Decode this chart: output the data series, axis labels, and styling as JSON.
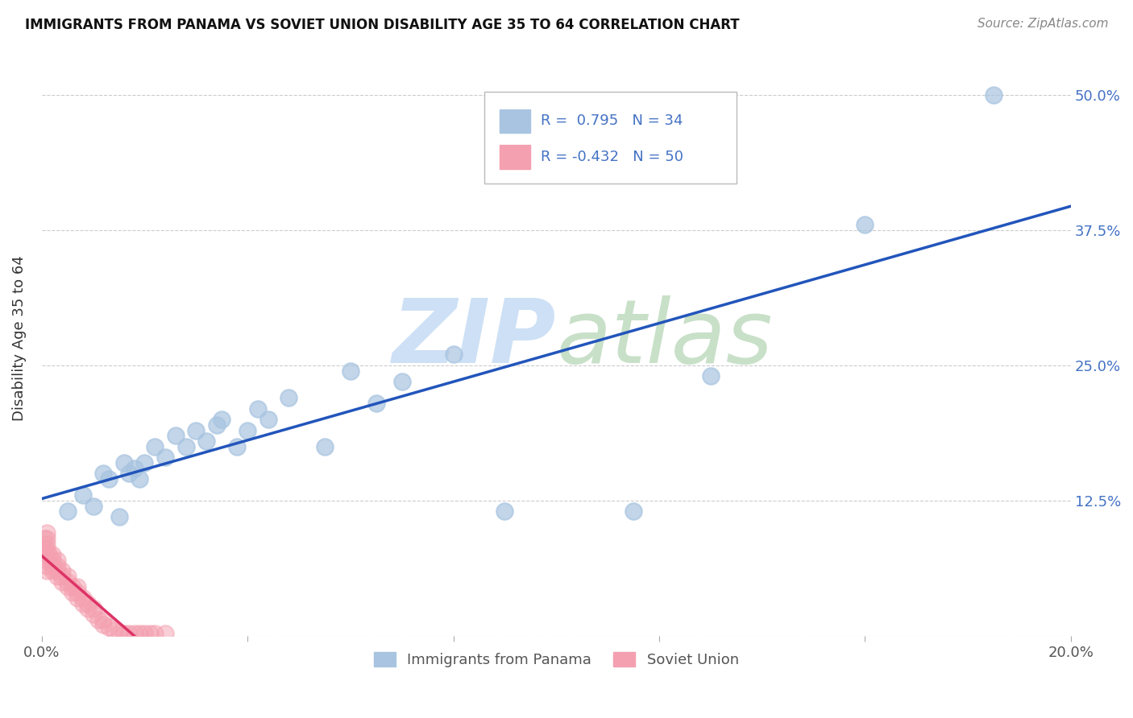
{
  "title": "IMMIGRANTS FROM PANAMA VS SOVIET UNION DISABILITY AGE 35 TO 64 CORRELATION CHART",
  "source": "Source: ZipAtlas.com",
  "ylabel": "Disability Age 35 to 64",
  "xlim": [
    0.0,
    0.2
  ],
  "ylim": [
    0.0,
    0.55
  ],
  "x_ticks": [
    0.0,
    0.04,
    0.08,
    0.12,
    0.16,
    0.2
  ],
  "x_tick_labels": [
    "0.0%",
    "",
    "",
    "",
    "",
    "20.0%"
  ],
  "y_ticks": [
    0.0,
    0.125,
    0.25,
    0.375,
    0.5
  ],
  "y_tick_labels_right": [
    "",
    "12.5%",
    "25.0%",
    "37.5%",
    "50.0%"
  ],
  "panama_R": 0.795,
  "panama_N": 34,
  "soviet_R": -0.432,
  "soviet_N": 50,
  "panama_color": "#a8c4e0",
  "soviet_color": "#f4a0b0",
  "trendline_panama_color": "#2255bb",
  "trendline_soviet_color": "#dd3366",
  "panama_scatter_alpha": 0.7,
  "soviet_scatter_alpha": 0.5,
  "panama_points_x": [
    0.005,
    0.008,
    0.01,
    0.012,
    0.013,
    0.015,
    0.016,
    0.017,
    0.018,
    0.019,
    0.02,
    0.022,
    0.024,
    0.026,
    0.028,
    0.03,
    0.032,
    0.034,
    0.035,
    0.038,
    0.04,
    0.042,
    0.044,
    0.048,
    0.055,
    0.06,
    0.065,
    0.07,
    0.08,
    0.09,
    0.115,
    0.13,
    0.16,
    0.185
  ],
  "panama_points_y": [
    0.115,
    0.13,
    0.12,
    0.15,
    0.145,
    0.11,
    0.16,
    0.15,
    0.155,
    0.145,
    0.16,
    0.175,
    0.165,
    0.185,
    0.175,
    0.19,
    0.18,
    0.195,
    0.2,
    0.175,
    0.19,
    0.21,
    0.2,
    0.22,
    0.175,
    0.245,
    0.215,
    0.235,
    0.26,
    0.115,
    0.115,
    0.24,
    0.38,
    0.5
  ],
  "soviet_points_x": [
    0.0005,
    0.0005,
    0.001,
    0.001,
    0.001,
    0.001,
    0.001,
    0.001,
    0.001,
    0.001,
    0.0015,
    0.002,
    0.002,
    0.002,
    0.002,
    0.003,
    0.003,
    0.003,
    0.003,
    0.004,
    0.004,
    0.004,
    0.005,
    0.005,
    0.005,
    0.006,
    0.006,
    0.007,
    0.007,
    0.007,
    0.008,
    0.008,
    0.009,
    0.009,
    0.01,
    0.01,
    0.011,
    0.012,
    0.012,
    0.013,
    0.014,
    0.015,
    0.016,
    0.017,
    0.018,
    0.019,
    0.02,
    0.021,
    0.022,
    0.024
  ],
  "soviet_points_y": [
    0.08,
    0.09,
    0.06,
    0.065,
    0.07,
    0.075,
    0.08,
    0.085,
    0.09,
    0.095,
    0.075,
    0.06,
    0.065,
    0.07,
    0.075,
    0.055,
    0.06,
    0.065,
    0.07,
    0.05,
    0.055,
    0.06,
    0.045,
    0.05,
    0.055,
    0.04,
    0.045,
    0.035,
    0.04,
    0.045,
    0.03,
    0.035,
    0.025,
    0.03,
    0.02,
    0.025,
    0.015,
    0.01,
    0.015,
    0.008,
    0.005,
    0.003,
    0.002,
    0.002,
    0.002,
    0.002,
    0.002,
    0.002,
    0.002,
    0.002
  ],
  "watermark_zip_color": "#cde0f5",
  "watermark_atlas_color": "#c8e0c8",
  "grid_color": "#cccccc",
  "title_fontsize": 12,
  "tick_fontsize": 13
}
